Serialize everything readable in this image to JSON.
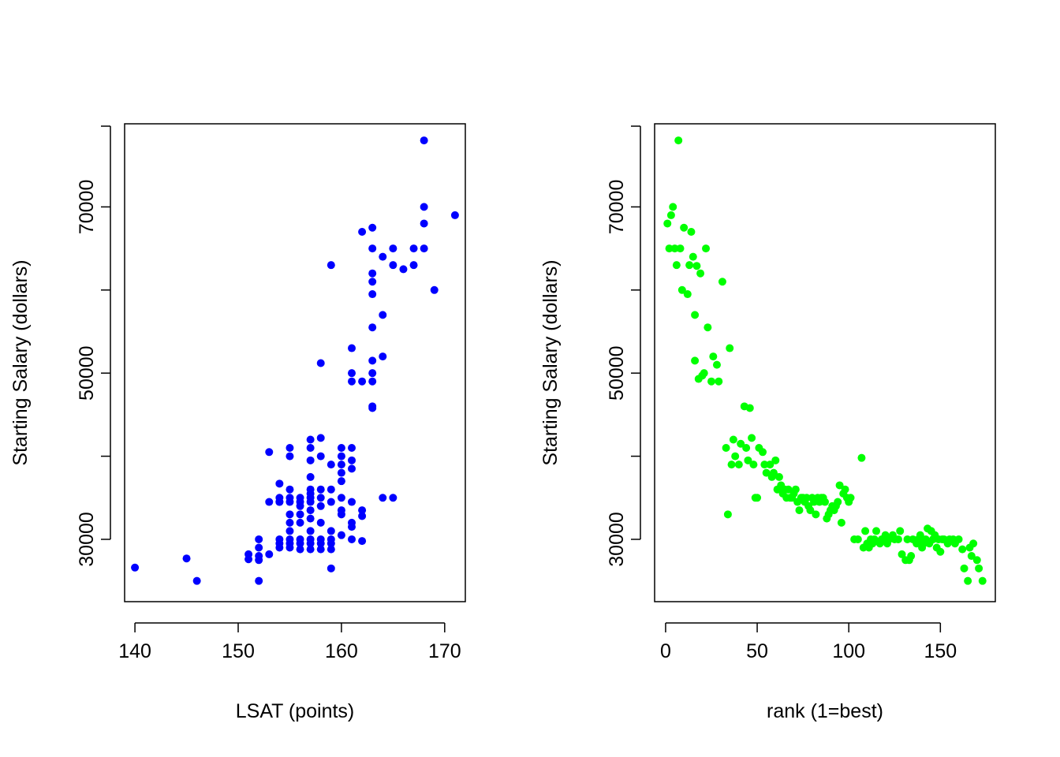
{
  "chart_data": [
    {
      "type": "scatter",
      "xlabel": "LSAT (points)",
      "ylabel": "Starting Salary (dollars)",
      "xlim": [
        139,
        172
      ],
      "ylim": [
        22500,
        80000
      ],
      "xticks": [
        140,
        150,
        160,
        170
      ],
      "yticks": [
        30000,
        50000,
        70000
      ],
      "ytick_labels_shown": [
        "30000",
        "50000",
        "70000"
      ],
      "point_color": "#0000ff",
      "grid": false,
      "points": [
        [
          140,
          26600
        ],
        [
          145,
          27700
        ],
        [
          146,
          25000
        ],
        [
          151,
          28200
        ],
        [
          151,
          27600
        ],
        [
          152,
          30000
        ],
        [
          152,
          29000
        ],
        [
          152,
          28000
        ],
        [
          152,
          27500
        ],
        [
          152,
          25000
        ],
        [
          153,
          40500
        ],
        [
          153,
          34500
        ],
        [
          153,
          28200
        ],
        [
          154,
          36700
        ],
        [
          154,
          35000
        ],
        [
          154,
          34500
        ],
        [
          154,
          34500
        ],
        [
          154,
          30000
        ],
        [
          154,
          29500
        ],
        [
          154,
          29000
        ],
        [
          155,
          41000
        ],
        [
          155,
          40000
        ],
        [
          155,
          36000
        ],
        [
          155,
          35000
        ],
        [
          155,
          34500
        ],
        [
          155,
          33000
        ],
        [
          155,
          32000
        ],
        [
          155,
          31000
        ],
        [
          155,
          30000
        ],
        [
          155,
          29500
        ],
        [
          155,
          29000
        ],
        [
          156,
          35000
        ],
        [
          156,
          34500
        ],
        [
          156,
          34000
        ],
        [
          156,
          33000
        ],
        [
          156,
          32000
        ],
        [
          156,
          30000
        ],
        [
          156,
          29500
        ],
        [
          156,
          28800
        ],
        [
          157,
          42000
        ],
        [
          157,
          41000
        ],
        [
          157,
          39500
        ],
        [
          157,
          37500
        ],
        [
          157,
          36000
        ],
        [
          157,
          35500
        ],
        [
          157,
          35000
        ],
        [
          157,
          34500
        ],
        [
          157,
          33500
        ],
        [
          157,
          32500
        ],
        [
          157,
          31000
        ],
        [
          157,
          30000
        ],
        [
          157,
          29500
        ],
        [
          157,
          28800
        ],
        [
          158,
          42200
        ],
        [
          158,
          40000
        ],
        [
          158,
          36000
        ],
        [
          158,
          35000
        ],
        [
          158,
          34000
        ],
        [
          158,
          32000
        ],
        [
          158,
          30000
        ],
        [
          158,
          29500
        ],
        [
          158,
          28800
        ],
        [
          159,
          63000
        ],
        [
          159,
          39000
        ],
        [
          159,
          36000
        ],
        [
          159,
          34500
        ],
        [
          159,
          31000
        ],
        [
          159,
          30000
        ],
        [
          159,
          29500
        ],
        [
          159,
          28800
        ],
        [
          159,
          26500
        ],
        [
          160,
          41000
        ],
        [
          160,
          40000
        ],
        [
          160,
          39000
        ],
        [
          160,
          38000
        ],
        [
          160,
          37000
        ],
        [
          160,
          35000
        ],
        [
          160,
          33500
        ],
        [
          160,
          33000
        ],
        [
          160,
          30500
        ],
        [
          161,
          53000
        ],
        [
          161,
          50000
        ],
        [
          161,
          49000
        ],
        [
          161,
          41000
        ],
        [
          161,
          39500
        ],
        [
          161,
          38500
        ],
        [
          161,
          34500
        ],
        [
          161,
          32000
        ],
        [
          161,
          31500
        ],
        [
          161,
          30000
        ],
        [
          162,
          67000
        ],
        [
          162,
          49000
        ],
        [
          162,
          33500
        ],
        [
          162,
          32800
        ],
        [
          162,
          29800
        ],
        [
          163,
          67500
        ],
        [
          163,
          65000
        ],
        [
          163,
          62000
        ],
        [
          163,
          61000
        ],
        [
          163,
          59500
        ],
        [
          163,
          55500
        ],
        [
          163,
          51500
        ],
        [
          163,
          50000
        ],
        [
          163,
          49000
        ],
        [
          163,
          46000
        ],
        [
          163,
          45800
        ],
        [
          164,
          64000
        ],
        [
          164,
          57000
        ],
        [
          164,
          52000
        ],
        [
          164,
          35000
        ],
        [
          165,
          65000
        ],
        [
          165,
          63000
        ],
        [
          165,
          35000
        ],
        [
          166,
          62500
        ],
        [
          167,
          65000
        ],
        [
          167,
          63000
        ],
        [
          168,
          78000
        ],
        [
          168,
          70000
        ],
        [
          168,
          68000
        ],
        [
          168,
          65000
        ],
        [
          169,
          60000
        ],
        [
          171,
          69000
        ],
        [
          158,
          51200
        ]
      ]
    },
    {
      "type": "scatter",
      "xlabel": "rank (1=best)",
      "ylabel": "Starting Salary (dollars)",
      "xlim": [
        -6,
        180
      ],
      "ylim": [
        22500,
        80000
      ],
      "xticks": [
        0,
        50,
        100,
        150
      ],
      "yticks": [
        30000,
        50000,
        70000
      ],
      "ytick_labels_shown": [
        "30000",
        "50000",
        "70000"
      ],
      "point_color": "#00ff00",
      "grid": false,
      "points": [
        [
          1,
          68000
        ],
        [
          2,
          65000
        ],
        [
          3,
          69000
        ],
        [
          4,
          70000
        ],
        [
          5,
          65000
        ],
        [
          6,
          63000
        ],
        [
          7,
          78000
        ],
        [
          8,
          65000
        ],
        [
          9,
          60000
        ],
        [
          10,
          67500
        ],
        [
          12,
          59500
        ],
        [
          13,
          63000
        ],
        [
          14,
          67000
        ],
        [
          15,
          64000
        ],
        [
          16,
          57000
        ],
        [
          16,
          51500
        ],
        [
          17,
          62900
        ],
        [
          18,
          49300
        ],
        [
          19,
          62000
        ],
        [
          20,
          49700
        ],
        [
          21,
          50000
        ],
        [
          22,
          65000
        ],
        [
          23,
          55500
        ],
        [
          25,
          49000
        ],
        [
          26,
          52000
        ],
        [
          28,
          51000
        ],
        [
          29,
          49000
        ],
        [
          31,
          61000
        ],
        [
          33,
          41000
        ],
        [
          34,
          33000
        ],
        [
          35,
          53000
        ],
        [
          36,
          39000
        ],
        [
          37,
          42000
        ],
        [
          38,
          40000
        ],
        [
          40,
          39000
        ],
        [
          41,
          41500
        ],
        [
          43,
          46000
        ],
        [
          44,
          41000
        ],
        [
          45,
          39500
        ],
        [
          46,
          45800
        ],
        [
          47,
          42200
        ],
        [
          48,
          39000
        ],
        [
          49,
          35000
        ],
        [
          50,
          35000
        ],
        [
          51,
          41000
        ],
        [
          53,
          40500
        ],
        [
          54,
          39000
        ],
        [
          55,
          38000
        ],
        [
          57,
          39000
        ],
        [
          58,
          37500
        ],
        [
          59,
          38000
        ],
        [
          60,
          39500
        ],
        [
          61,
          36000
        ],
        [
          62,
          37500
        ],
        [
          63,
          36500
        ],
        [
          64,
          35500
        ],
        [
          65,
          36000
        ],
        [
          66,
          35000
        ],
        [
          67,
          36000
        ],
        [
          68,
          35000
        ],
        [
          69,
          35000
        ],
        [
          70,
          35500
        ],
        [
          71,
          36000
        ],
        [
          72,
          34500
        ],
        [
          73,
          33500
        ],
        [
          74,
          35000
        ],
        [
          75,
          35000
        ],
        [
          76,
          34500
        ],
        [
          77,
          35000
        ],
        [
          78,
          34000
        ],
        [
          79,
          33500
        ],
        [
          80,
          35000
        ],
        [
          81,
          34500
        ],
        [
          82,
          33000
        ],
        [
          83,
          35000
        ],
        [
          84,
          34500
        ],
        [
          85,
          35000
        ],
        [
          86,
          35000
        ],
        [
          87,
          34500
        ],
        [
          88,
          32500
        ],
        [
          89,
          33000
        ],
        [
          90,
          33500
        ],
        [
          91,
          34000
        ],
        [
          92,
          33500
        ],
        [
          93,
          34000
        ],
        [
          94,
          34500
        ],
        [
          95,
          36500
        ],
        [
          96,
          32000
        ],
        [
          97,
          35500
        ],
        [
          98,
          36000
        ],
        [
          99,
          35000
        ],
        [
          100,
          34500
        ],
        [
          101,
          35000
        ],
        [
          103,
          30000
        ],
        [
          105,
          30000
        ],
        [
          107,
          39800
        ],
        [
          108,
          29000
        ],
        [
          109,
          31000
        ],
        [
          110,
          29500
        ],
        [
          111,
          29000
        ],
        [
          112,
          30000
        ],
        [
          113,
          29500
        ],
        [
          114,
          30000
        ],
        [
          115,
          31000
        ],
        [
          117,
          29500
        ],
        [
          118,
          30000
        ],
        [
          120,
          30500
        ],
        [
          121,
          29500
        ],
        [
          122,
          30000
        ],
        [
          124,
          30500
        ],
        [
          125,
          30000
        ],
        [
          127,
          30000
        ],
        [
          128,
          31000
        ],
        [
          129,
          28200
        ],
        [
          131,
          27500
        ],
        [
          132,
          30000
        ],
        [
          133,
          27500
        ],
        [
          134,
          28000
        ],
        [
          135,
          30000
        ],
        [
          137,
          29500
        ],
        [
          138,
          30000
        ],
        [
          139,
          30500
        ],
        [
          140,
          29000
        ],
        [
          141,
          29500
        ],
        [
          142,
          30000
        ],
        [
          143,
          31300
        ],
        [
          144,
          29500
        ],
        [
          145,
          31000
        ],
        [
          146,
          30000
        ],
        [
          147,
          30500
        ],
        [
          148,
          29000
        ],
        [
          149,
          30000
        ],
        [
          150,
          28500
        ],
        [
          151,
          30000
        ],
        [
          152,
          30000
        ],
        [
          154,
          29500
        ],
        [
          155,
          30000
        ],
        [
          157,
          30000
        ],
        [
          158,
          29500
        ],
        [
          160,
          30000
        ],
        [
          162,
          28800
        ],
        [
          163,
          26500
        ],
        [
          165,
          25000
        ],
        [
          166,
          29000
        ],
        [
          167,
          28000
        ],
        [
          168,
          29500
        ],
        [
          170,
          27500
        ],
        [
          171,
          26500
        ],
        [
          173,
          25000
        ]
      ]
    }
  ]
}
